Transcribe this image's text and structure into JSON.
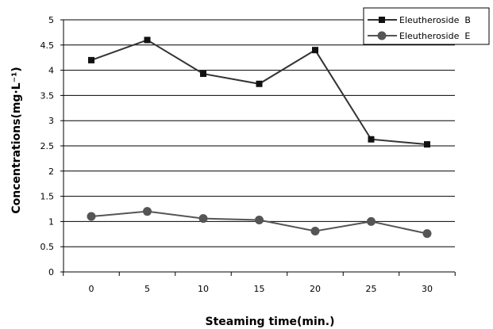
{
  "chart_data": {
    "type": "line",
    "xlabel": "Steaming time(min.)",
    "ylabel": "Concentrations(mg·L⁻¹)",
    "x": [
      0,
      5,
      10,
      15,
      20,
      25,
      30
    ],
    "x_tick_labels": [
      "0",
      "5",
      "10",
      "15",
      "20",
      "25",
      "30"
    ],
    "y_tick_labels": [
      "0",
      "0.5",
      "1",
      "1.5",
      "2",
      "2.5",
      "3",
      "3.5",
      "4",
      "4.5",
      "5"
    ],
    "ylim": [
      0,
      5
    ],
    "grid": "horizontal",
    "legend_position": "top-right",
    "series": [
      {
        "name": "Eleutheroside  B",
        "marker": "square",
        "color": "#333333",
        "values": [
          4.2,
          4.6,
          3.93,
          3.73,
          4.4,
          2.63,
          2.53
        ]
      },
      {
        "name": "Eleutheroside  E",
        "marker": "circle",
        "color": "#555555",
        "values": [
          1.1,
          1.2,
          1.06,
          1.03,
          0.81,
          1.0,
          0.76
        ]
      }
    ]
  }
}
